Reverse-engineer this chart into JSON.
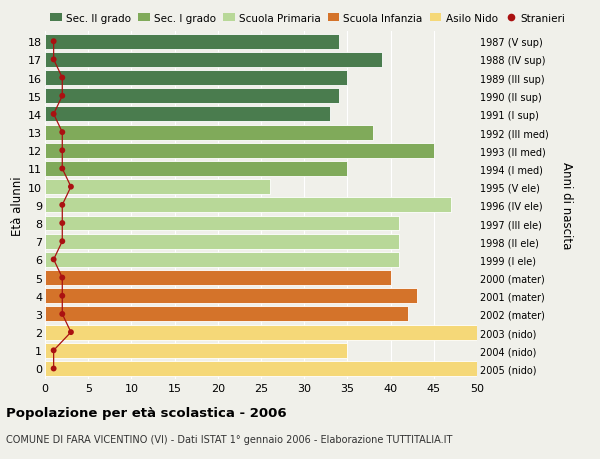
{
  "ages": [
    18,
    17,
    16,
    15,
    14,
    13,
    12,
    11,
    10,
    9,
    8,
    7,
    6,
    5,
    4,
    3,
    2,
    1,
    0
  ],
  "right_labels": [
    "1987 (V sup)",
    "1988 (IV sup)",
    "1989 (III sup)",
    "1990 (II sup)",
    "1991 (I sup)",
    "1992 (III med)",
    "1993 (II med)",
    "1994 (I med)",
    "1995 (V ele)",
    "1996 (IV ele)",
    "1997 (III ele)",
    "1998 (II ele)",
    "1999 (I ele)",
    "2000 (mater)",
    "2001 (mater)",
    "2002 (mater)",
    "2003 (nido)",
    "2004 (nido)",
    "2005 (nido)"
  ],
  "bar_values": [
    34,
    39,
    35,
    34,
    33,
    38,
    45,
    35,
    26,
    47,
    41,
    41,
    41,
    40,
    43,
    42,
    50,
    35,
    50
  ],
  "stranieri_values": [
    1,
    1,
    2,
    2,
    1,
    2,
    2,
    2,
    3,
    2,
    2,
    2,
    1,
    2,
    2,
    2,
    3,
    1,
    1
  ],
  "bar_colors": [
    "#4a7c4e",
    "#4a7c4e",
    "#4a7c4e",
    "#4a7c4e",
    "#4a7c4e",
    "#80aa5a",
    "#80aa5a",
    "#80aa5a",
    "#b8d898",
    "#b8d898",
    "#b8d898",
    "#b8d898",
    "#b8d898",
    "#d4732a",
    "#d4732a",
    "#d4732a",
    "#f5d878",
    "#f5d878",
    "#f5d878"
  ],
  "legend_labels": [
    "Sec. II grado",
    "Sec. I grado",
    "Scuola Primaria",
    "Scuola Infanzia",
    "Asilo Nido",
    "Stranieri"
  ],
  "legend_colors": [
    "#4a7c4e",
    "#80aa5a",
    "#b8d898",
    "#d4732a",
    "#f5d878",
    "#cc2222"
  ],
  "ylabel": "Età alunni",
  "right_ylabel": "Anni di nascita",
  "title": "Popolazione per età scolastica - 2006",
  "subtitle": "COMUNE DI FARA VICENTINO (VI) - Dati ISTAT 1° gennaio 2006 - Elaborazione TUTTITALIA.IT",
  "xlim": [
    0,
    50
  ],
  "xticks": [
    0,
    5,
    10,
    15,
    20,
    25,
    30,
    35,
    40,
    45,
    50
  ],
  "background_color": "#f0f0ea",
  "stranieri_color": "#aa1111",
  "bar_height": 0.82
}
